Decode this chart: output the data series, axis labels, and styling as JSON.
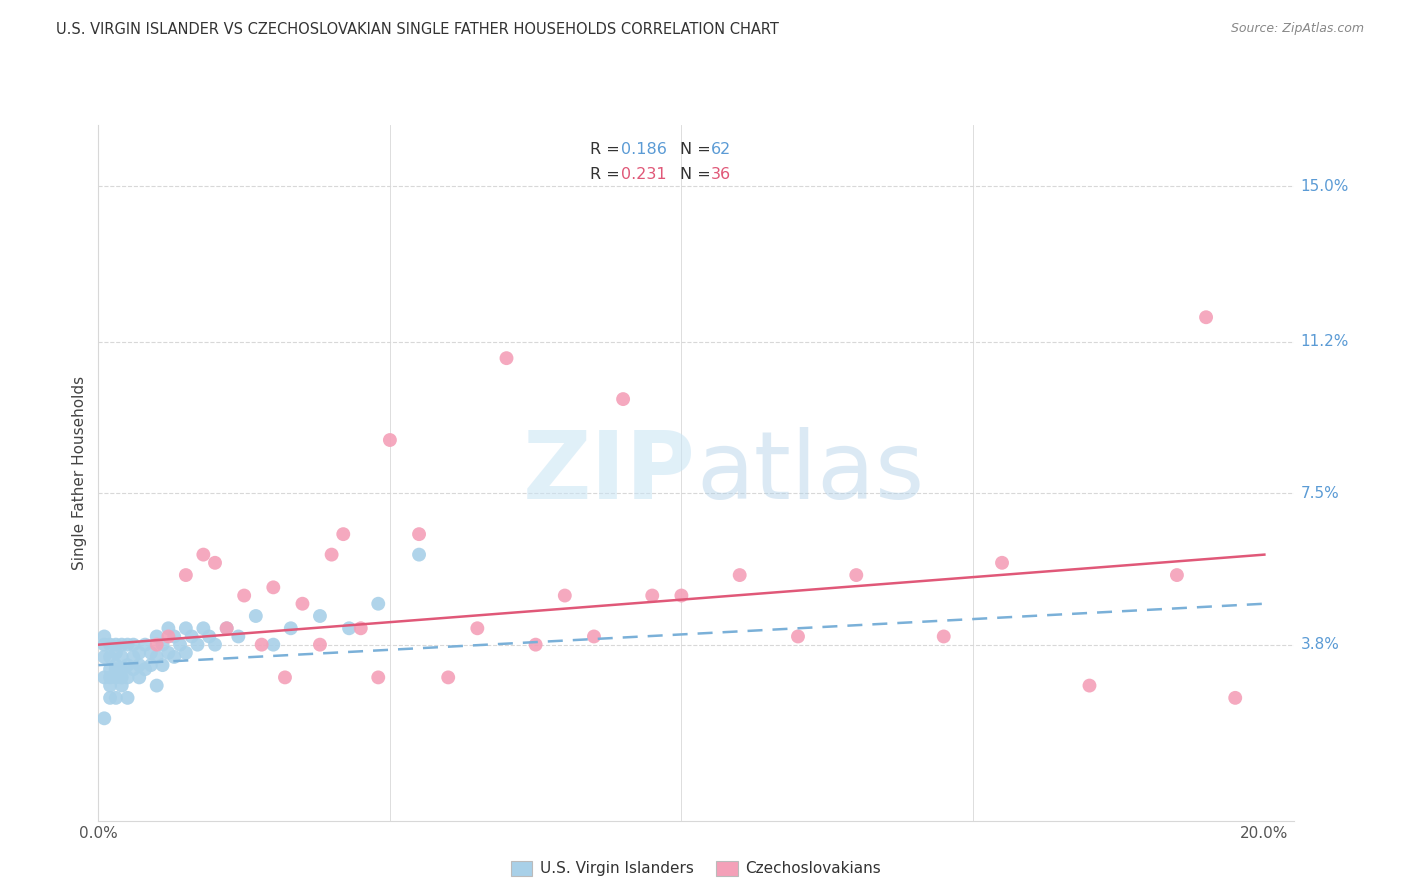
{
  "title": "U.S. VIRGIN ISLANDER VS CZECHOSLOVAKIAN SINGLE FATHER HOUSEHOLDS CORRELATION CHART",
  "source": "Source: ZipAtlas.com",
  "ylabel_label": "Single Father Households",
  "xlim": [
    0.0,
    0.205
  ],
  "ylim": [
    -0.005,
    0.165
  ],
  "ytick_labels_right": [
    "15.0%",
    "11.2%",
    "7.5%",
    "3.8%"
  ],
  "ytick_values_right": [
    0.15,
    0.112,
    0.075,
    0.038
  ],
  "color_vi": "#a8d0e8",
  "color_cz": "#f4a0b8",
  "color_vi_line": "#7ab0d8",
  "color_cz_line": "#e05878",
  "watermark_color": "#d8eef8",
  "background_color": "#ffffff",
  "grid_color": "#d8d8d8",
  "vi_x": [
    0.001,
    0.001,
    0.001,
    0.001,
    0.001,
    0.002,
    0.002,
    0.002,
    0.002,
    0.002,
    0.002,
    0.003,
    0.003,
    0.003,
    0.003,
    0.003,
    0.003,
    0.004,
    0.004,
    0.004,
    0.004,
    0.004,
    0.005,
    0.005,
    0.005,
    0.005,
    0.006,
    0.006,
    0.006,
    0.007,
    0.007,
    0.007,
    0.008,
    0.008,
    0.009,
    0.009,
    0.01,
    0.01,
    0.01,
    0.011,
    0.011,
    0.012,
    0.012,
    0.013,
    0.013,
    0.014,
    0.015,
    0.015,
    0.016,
    0.017,
    0.018,
    0.019,
    0.02,
    0.022,
    0.024,
    0.027,
    0.03,
    0.033,
    0.038,
    0.043,
    0.048,
    0.055
  ],
  "vi_y": [
    0.02,
    0.03,
    0.035,
    0.04,
    0.038,
    0.025,
    0.03,
    0.035,
    0.038,
    0.032,
    0.028,
    0.033,
    0.036,
    0.038,
    0.03,
    0.025,
    0.032,
    0.035,
    0.038,
    0.032,
    0.028,
    0.03,
    0.033,
    0.038,
    0.03,
    0.025,
    0.035,
    0.038,
    0.032,
    0.036,
    0.033,
    0.03,
    0.038,
    0.032,
    0.036,
    0.033,
    0.04,
    0.035,
    0.028,
    0.038,
    0.033,
    0.042,
    0.036,
    0.04,
    0.035,
    0.038,
    0.042,
    0.036,
    0.04,
    0.038,
    0.042,
    0.04,
    0.038,
    0.042,
    0.04,
    0.045,
    0.038,
    0.042,
    0.045,
    0.042,
    0.048,
    0.06
  ],
  "cz_x": [
    0.01,
    0.012,
    0.015,
    0.018,
    0.02,
    0.022,
    0.025,
    0.028,
    0.03,
    0.032,
    0.035,
    0.038,
    0.04,
    0.042,
    0.045,
    0.048,
    0.05,
    0.055,
    0.06,
    0.065,
    0.07,
    0.075,
    0.08,
    0.085,
    0.09,
    0.095,
    0.1,
    0.11,
    0.12,
    0.13,
    0.145,
    0.155,
    0.17,
    0.185,
    0.19,
    0.195
  ],
  "cz_y": [
    0.038,
    0.04,
    0.055,
    0.06,
    0.058,
    0.042,
    0.05,
    0.038,
    0.052,
    0.03,
    0.048,
    0.038,
    0.06,
    0.065,
    0.042,
    0.03,
    0.088,
    0.065,
    0.03,
    0.042,
    0.108,
    0.038,
    0.05,
    0.04,
    0.098,
    0.05,
    0.05,
    0.055,
    0.04,
    0.055,
    0.04,
    0.058,
    0.028,
    0.055,
    0.118,
    0.025
  ],
  "vi_line_x": [
    0.0,
    0.2
  ],
  "vi_line_y": [
    0.033,
    0.048
  ],
  "cz_line_x": [
    0.0,
    0.2
  ],
  "cz_line_y": [
    0.038,
    0.06
  ]
}
